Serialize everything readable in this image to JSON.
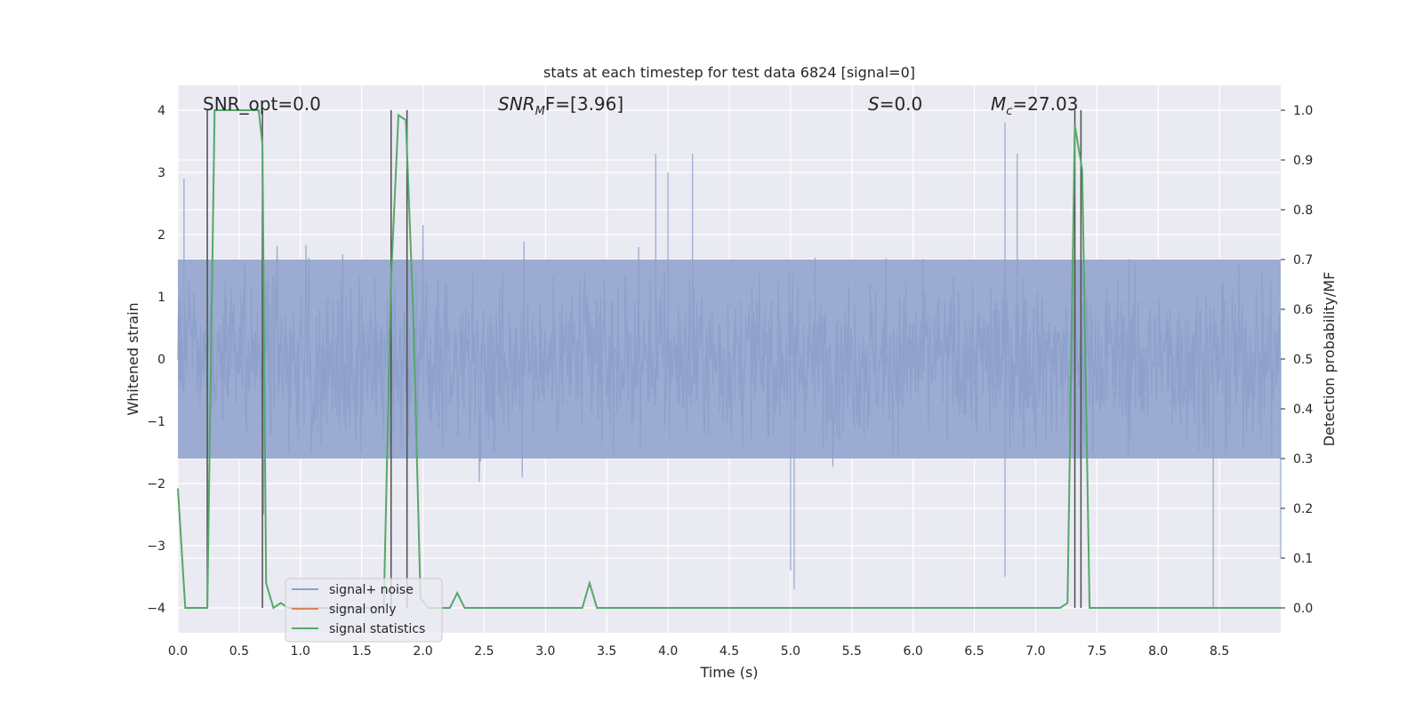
{
  "chart_data": {
    "type": "line",
    "title": "stats at each timestep for test data 6824 [signal=0]",
    "xlabel": "Time (s)",
    "ylabel": "Whitened strain",
    "ylabel_right": "Detection probability/MF",
    "xlim": [
      0,
      9.0
    ],
    "ylim": [
      -4.4,
      4.4
    ],
    "ylim_right": [
      -0.05,
      1.05
    ],
    "grid": true,
    "x_ticks": [
      "0.0",
      "0.5",
      "1.0",
      "1.5",
      "2.0",
      "2.5",
      "3.0",
      "3.5",
      "4.0",
      "4.5",
      "5.0",
      "5.5",
      "6.0",
      "6.5",
      "7.0",
      "7.5",
      "8.0",
      "8.5"
    ],
    "y_ticks": [
      "−4",
      "−3",
      "−2",
      "−1",
      "0",
      "1",
      "2",
      "3",
      "4"
    ],
    "y_ticks_right": [
      "0.0",
      "0.1",
      "0.2",
      "0.3",
      "0.4",
      "0.5",
      "0.6",
      "0.7",
      "0.8",
      "0.9",
      "1.0"
    ],
    "legend_position": "lower-left",
    "annotations": {
      "snr_opt": "SNR_opt=0.0",
      "snr_mf_main": "SNR",
      "snr_mf_sub": "M",
      "snr_mf_rest": "F=[3.96]",
      "s_main": "S",
      "s_rest": "=0.0",
      "mc_main": "M",
      "mc_sub": "c",
      "mc_rest": "=27.03"
    },
    "series": [
      {
        "name": "signal+ noise",
        "color": "#8da0cb",
        "typical_range": [
          -1.6,
          1.6
        ],
        "spike_extremes": [
          [
            0.05,
            2.9
          ],
          [
            0.7,
            -2.5
          ],
          [
            3.9,
            3.3
          ],
          [
            4.0,
            3.0
          ],
          [
            4.2,
            3.3
          ],
          [
            5.0,
            -3.4
          ],
          [
            5.03,
            -3.7
          ],
          [
            6.75,
            3.8
          ],
          [
            6.75,
            -3.5
          ],
          [
            6.85,
            3.3
          ],
          [
            8.45,
            -4.0
          ],
          [
            9.0,
            -3.2
          ]
        ]
      },
      {
        "name": "signal only",
        "color": "#dd8452",
        "x": [],
        "y": []
      },
      {
        "name": "signal statistics",
        "color": "#55a868",
        "axis": "right",
        "x": [
          0.0,
          0.06,
          0.12,
          0.18,
          0.24,
          0.3,
          0.36,
          0.42,
          0.48,
          0.54,
          0.6,
          0.66,
          0.69,
          0.72,
          0.78,
          0.84,
          0.9,
          0.96,
          1.02,
          1.08,
          1.14,
          1.2,
          1.26,
          1.32,
          1.38,
          1.44,
          1.5,
          1.56,
          1.62,
          1.68,
          1.74,
          1.8,
          1.86,
          1.92,
          1.98,
          2.04,
          2.1,
          2.16,
          2.22,
          2.28,
          2.34,
          2.4,
          2.46,
          2.52,
          2.58,
          2.64,
          2.7,
          2.76,
          2.82,
          2.88,
          2.94,
          3.0,
          3.06,
          3.12,
          3.18,
          3.24,
          3.3,
          3.36,
          3.42,
          3.48,
          3.54,
          3.6,
          3.66,
          3.72,
          3.78,
          3.84,
          3.9,
          3.96,
          4.02,
          4.08,
          4.14,
          4.2,
          4.26,
          4.32,
          4.38,
          4.44,
          4.5,
          4.56,
          4.62,
          4.68,
          4.74,
          4.8,
          4.86,
          4.92,
          4.98,
          5.04,
          5.1,
          5.16,
          5.22,
          5.28,
          5.34,
          5.4,
          5.46,
          5.52,
          5.58,
          5.64,
          5.7,
          5.76,
          5.82,
          5.88,
          5.94,
          6.0,
          6.06,
          6.12,
          6.18,
          6.24,
          6.3,
          6.36,
          6.42,
          6.48,
          6.54,
          6.6,
          6.66,
          6.72,
          6.78,
          6.84,
          6.9,
          6.96,
          7.02,
          7.08,
          7.14,
          7.2,
          7.26,
          7.32,
          7.38,
          7.44,
          7.5,
          7.56,
          7.62,
          7.68,
          7.74,
          7.8,
          7.86,
          7.92,
          7.98,
          8.04,
          8.1,
          8.16,
          8.22,
          8.28,
          8.34,
          8.4,
          8.46,
          8.52,
          8.58,
          8.64,
          8.7,
          8.76,
          8.82,
          8.88,
          8.94,
          9.0
        ],
        "y": [
          0.24,
          0.0,
          0.0,
          0.0,
          0.0,
          1.0,
          1.0,
          1.0,
          1.0,
          1.0,
          1.0,
          1.0,
          0.93,
          0.05,
          0.0,
          0.01,
          0.0,
          0.0,
          0.0,
          0.0,
          0.0,
          0.0,
          0.0,
          0.0,
          0.0,
          0.0,
          0.0,
          0.0,
          0.0,
          0.0,
          0.66,
          0.99,
          0.98,
          0.6,
          0.02,
          0.0,
          0.0,
          0.0,
          0.0,
          0.03,
          0.0,
          0.0,
          0.0,
          0.0,
          0.0,
          0.0,
          0.0,
          0.0,
          0.0,
          0.0,
          0.0,
          0.0,
          0.0,
          0.0,
          0.0,
          0.0,
          0.0,
          0.05,
          0.0,
          0.0,
          0.0,
          0.0,
          0.0,
          0.0,
          0.0,
          0.0,
          0.0,
          0.0,
          0.0,
          0.0,
          0.0,
          0.0,
          0.0,
          0.0,
          0.0,
          0.0,
          0.0,
          0.0,
          0.0,
          0.0,
          0.0,
          0.0,
          0.0,
          0.0,
          0.0,
          0.0,
          0.0,
          0.0,
          0.0,
          0.0,
          0.0,
          0.0,
          0.0,
          0.0,
          0.0,
          0.0,
          0.0,
          0.0,
          0.0,
          0.0,
          0.0,
          0.0,
          0.0,
          0.0,
          0.0,
          0.0,
          0.0,
          0.0,
          0.0,
          0.0,
          0.0,
          0.0,
          0.0,
          0.0,
          0.0,
          0.0,
          0.0,
          0.0,
          0.0,
          0.0,
          0.0,
          0.0,
          0.01,
          0.97,
          0.88,
          0.0,
          0.0,
          0.0,
          0.0,
          0.0,
          0.0,
          0.0,
          0.0,
          0.0,
          0.0,
          0.0,
          0.0,
          0.0,
          0.0,
          0.0,
          0.0,
          0.0,
          0.0,
          0.0,
          0.0,
          0.0,
          0.0,
          0.0,
          0.0,
          0.0,
          0.0,
          0.0
        ]
      }
    ],
    "vertical_lines": {
      "color": "#4d4d4d",
      "x": [
        0.24,
        0.69,
        1.74,
        1.87,
        7.32,
        7.37
      ]
    }
  }
}
